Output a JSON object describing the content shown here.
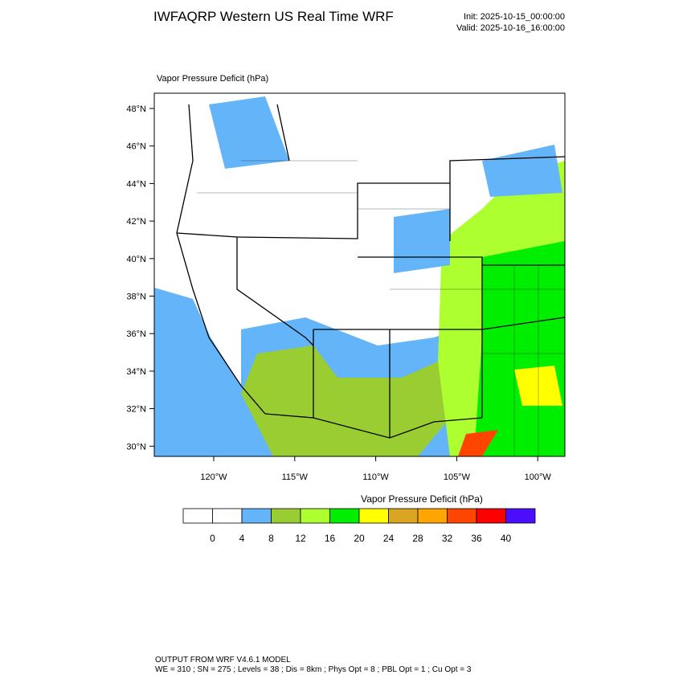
{
  "header": {
    "title": "IWFAQRP Western US Real Time WRF",
    "init": "Init: 2025-10-15_00:00:00",
    "valid": "Valid: 2025-10-16_16:00:00"
  },
  "map": {
    "label": "Vapor Pressure Deficit   (hPa)",
    "lat_labels": [
      "48°N",
      "46°N",
      "44°N",
      "42°N",
      "40°N",
      "38°N",
      "36°N",
      "34°N",
      "32°N",
      "30°N"
    ],
    "lon_labels": [
      "120°W",
      "115°W",
      "110°W",
      "105°W",
      "100°W"
    ]
  },
  "colorbar": {
    "title": "Vapor Pressure Deficit  (hPa)",
    "colors": [
      "#ffffff",
      "#ffffff",
      "#63b4f8",
      "#9acd32",
      "#adff2f",
      "#00ee00",
      "#ffff00",
      "#daa520",
      "#ffa500",
      "#ff4500",
      "#ff0000",
      "#4b0eff"
    ],
    "labels": [
      "0",
      "4",
      "8",
      "12",
      "16",
      "20",
      "24",
      "28",
      "32",
      "36",
      "40"
    ]
  },
  "footer": {
    "line1": "OUTPUT FROM WRF V4.6.1 MODEL",
    "line2": "WE = 310 ; SN = 275 ; Levels = 38 ; Dis = 8km ; Phys Opt = 8 ; PBL Opt = 1 ; Cu Opt = 3"
  }
}
